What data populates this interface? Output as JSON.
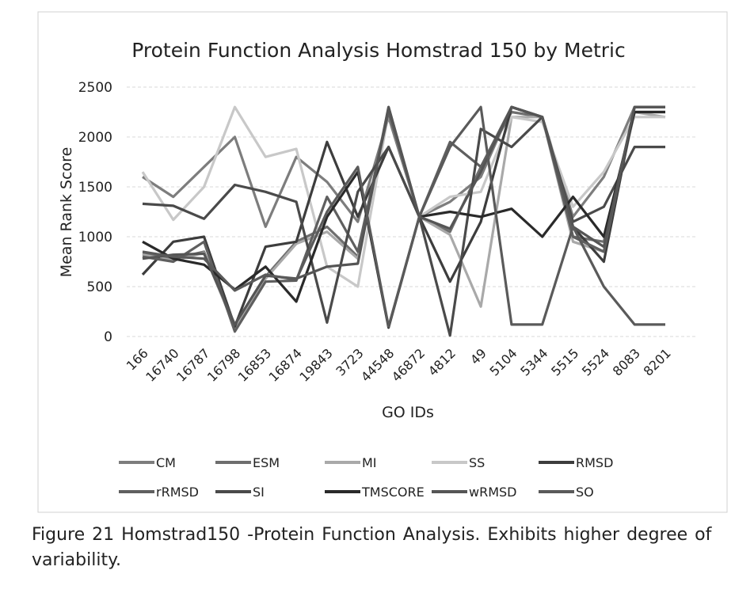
{
  "chart_data": {
    "type": "line",
    "title": "Protein Function Analysis Homstrad  150 by Metric",
    "xlabel": "GO IDs",
    "ylabel": "Mean Rank Score",
    "ylim": [
      0,
      2500
    ],
    "yticks": [
      0,
      500,
      1000,
      1500,
      2000,
      2500
    ],
    "grid": "horizontal",
    "legend_position": "bottom",
    "categories": [
      "166",
      "16740",
      "16787",
      "16798",
      "16853",
      "16874",
      "19843",
      "3723",
      "44548",
      "46872",
      "4812",
      "49",
      "5104",
      "5344",
      "5515",
      "5524",
      "8083",
      "8201"
    ],
    "series": [
      {
        "name": "CM",
        "color": "#7d7d7d",
        "values": [
          1600,
          1400,
          1700,
          2000,
          1100,
          1800,
          1550,
          1150,
          2200,
          1200,
          1350,
          1600,
          2300,
          2200,
          1200,
          1600,
          2300,
          2300
        ]
      },
      {
        "name": "ESM",
        "color": "#6e6e6e",
        "values": [
          830,
          780,
          850,
          100,
          600,
          950,
          1100,
          800,
          2300,
          1200,
          1050,
          1700,
          2250,
          2200,
          1000,
          950,
          2250,
          2250
        ]
      },
      {
        "name": "MI",
        "color": "#a9a9a9",
        "values": [
          820,
          760,
          840,
          90,
          580,
          930,
          1050,
          780,
          2250,
          1200,
          1020,
          300,
          2200,
          2200,
          950,
          850,
          2250,
          2200
        ]
      },
      {
        "name": "SS",
        "color": "#c8c8c8",
        "values": [
          1650,
          1170,
          1500,
          2300,
          1800,
          1880,
          700,
          500,
          2250,
          1200,
          1400,
          1450,
          2200,
          2150,
          1300,
          1650,
          2200,
          2200
        ]
      },
      {
        "name": "RMSD",
        "color": "#3d3d3d",
        "values": [
          620,
          950,
          1000,
          100,
          900,
          950,
          1950,
          1200,
          1900,
          1200,
          550,
          1150,
          2300,
          2200,
          1100,
          750,
          2300,
          2300
        ]
      },
      {
        "name": "rRMSD",
        "color": "#5f5f5f",
        "values": [
          800,
          750,
          950,
          50,
          550,
          560,
          1400,
          850,
          2250,
          1200,
          1950,
          1700,
          2300,
          2200,
          1000,
          850,
          2300,
          2300
        ]
      },
      {
        "name": "SI",
        "color": "#4a4a4a",
        "values": [
          1330,
          1310,
          1180,
          1520,
          1450,
          1350,
          140,
          1450,
          1900,
          1200,
          10,
          2080,
          1900,
          2200,
          1150,
          1300,
          1900,
          1900
        ]
      },
      {
        "name": "TMSCORE",
        "color": "#2a2a2a",
        "values": [
          950,
          780,
          720,
          470,
          700,
          350,
          1200,
          1650,
          90,
          1200,
          1250,
          1200,
          1280,
          1000,
          1400,
          1000,
          2250,
          2250
        ]
      },
      {
        "name": "wRMSD",
        "color": "#555555",
        "values": [
          780,
          820,
          830,
          120,
          610,
          580,
          700,
          730,
          2300,
          1200,
          1080,
          1650,
          2300,
          2200,
          1100,
          900,
          2300,
          2300
        ]
      },
      {
        "name": "SO",
        "color": "#5a5a5a",
        "values": [
          850,
          800,
          780,
          460,
          620,
          570,
          1250,
          1700,
          100,
          1200,
          1900,
          2300,
          120,
          120,
          1100,
          500,
          120,
          120
        ]
      }
    ]
  },
  "caption": "Figure 21 Homstrad150 -Protein Function Analysis.  Exhibits higher degree of variability."
}
